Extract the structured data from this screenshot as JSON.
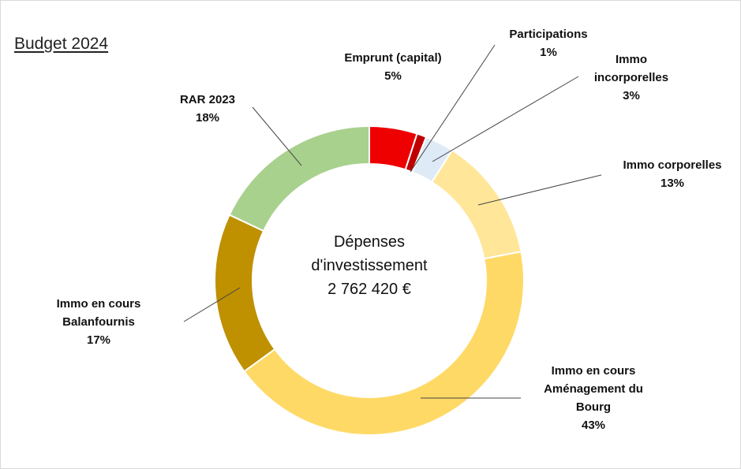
{
  "page": {
    "title": "Budget 2024"
  },
  "chart_data": {
    "type": "pie",
    "subtype": "doughnut",
    "title": "Budget 2024",
    "center_text": [
      "Dépenses",
      "d'investissement",
      "2 762 420 €"
    ],
    "slices": [
      {
        "label": [
          "Emprunt (capital)"
        ],
        "pct_label": "5%",
        "value": 5,
        "color": "#ee0000"
      },
      {
        "label": [
          "Participations"
        ],
        "pct_label": "1%",
        "value": 1,
        "color": "#c00000"
      },
      {
        "label": [
          "Immo",
          "incorporelles"
        ],
        "pct_label": "3%",
        "value": 3,
        "color": "#deebf7"
      },
      {
        "label": [
          "Immo corporelles"
        ],
        "pct_label": "13%",
        "value": 13,
        "color": "#ffe699"
      },
      {
        "label": [
          "Immo en cours",
          "Aménagement du",
          "Bourg"
        ],
        "pct_label": "43%",
        "value": 43,
        "color": "#ffd966"
      },
      {
        "label": [
          "Immo en cours",
          "Balanfournis"
        ],
        "pct_label": "17%",
        "value": 17,
        "color": "#bf9000"
      },
      {
        "label": [
          "RAR 2023"
        ],
        "pct_label": "18%",
        "value": 18,
        "color": "#a9d18e"
      }
    ],
    "legend": "none"
  }
}
